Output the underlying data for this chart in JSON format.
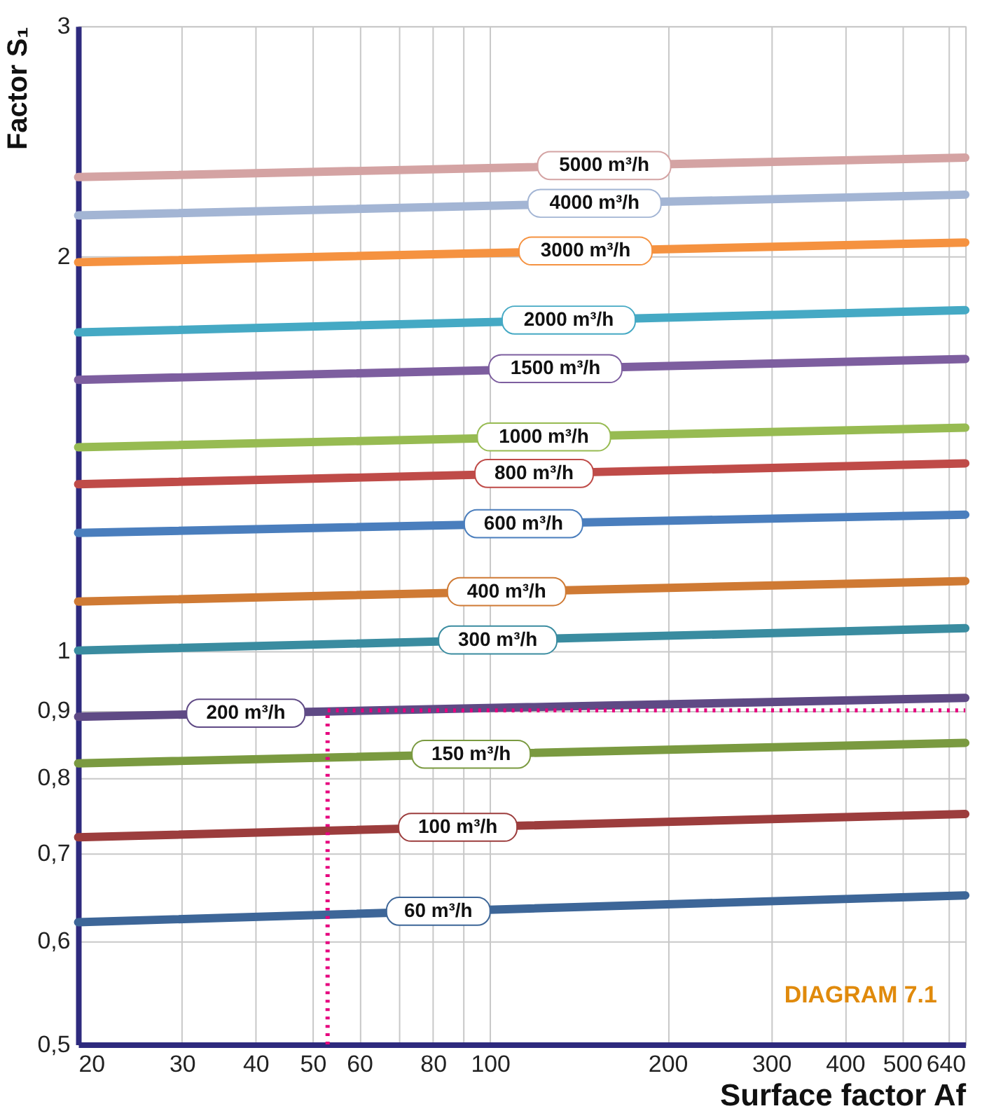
{
  "chart_data": {
    "type": "line",
    "xlabel": "Surface factor Af",
    "ylabel": "Factor S₁",
    "log": "xy",
    "grid": true,
    "legend": false,
    "line_style": "solid",
    "marker": "none",
    "xlim": [
      20,
      640
    ],
    "ylim": [
      0.5,
      3
    ],
    "xticks": [
      20,
      30,
      40,
      50,
      60,
      {
        "value": 70,
        "label": null
      },
      80,
      {
        "value": 90,
        "label": null
      },
      100,
      200,
      300,
      400,
      500,
      {
        "value": 600,
        "label": null
      },
      640
    ],
    "yticks": [
      {
        "value": 0.5,
        "label": "0,5"
      },
      {
        "value": 0.6,
        "label": "0,6"
      },
      {
        "value": 0.7,
        "label": "0,7"
      },
      {
        "value": 0.8,
        "label": "0,8"
      },
      {
        "value": 0.9,
        "label": "0,9"
      },
      1,
      2,
      3
    ],
    "x": [
      20,
      640
    ],
    "series": [
      {
        "name": "5000 m³/h",
        "color": "#d4a3a3",
        "values": [
          2.3,
          2.38
        ]
      },
      {
        "name": "4000 m³/h",
        "color": "#a3b5d4",
        "values": [
          2.15,
          2.23
        ]
      },
      {
        "name": "3000 m³/h",
        "color": "#f59240",
        "values": [
          1.98,
          2.05
        ]
      },
      {
        "name": "2000 m³/h",
        "color": "#45a9c4",
        "values": [
          1.75,
          1.82
        ]
      },
      {
        "name": "1500 m³/h",
        "color": "#7d5e9f",
        "values": [
          1.61,
          1.67
        ]
      },
      {
        "name": "1000 m³/h",
        "color": "#97bb52",
        "values": [
          1.43,
          1.48
        ]
      },
      {
        "name": "800 m³/h",
        "color": "#bf4b48",
        "values": [
          1.34,
          1.39
        ]
      },
      {
        "name": "600 m³/h",
        "color": "#4a7ebd",
        "values": [
          1.23,
          1.27
        ]
      },
      {
        "name": "400 m³/h",
        "color": "#cf7a34",
        "values": [
          1.09,
          1.13
        ]
      },
      {
        "name": "300 m³/h",
        "color": "#3a8ca0",
        "values": [
          1.0,
          1.04
        ]
      },
      {
        "name": "200 m³/h",
        "color": "#5f4a85",
        "values": [
          0.89,
          0.92
        ]
      },
      {
        "name": "150 m³/h",
        "color": "#7a9a40",
        "values": [
          0.82,
          0.85
        ]
      },
      {
        "name": "100 m³/h",
        "color": "#9c3d3d",
        "values": [
          0.72,
          0.75
        ]
      },
      {
        "name": "60 m³/h",
        "color": "#3d6698",
        "values": [
          0.62,
          0.65
        ]
      }
    ],
    "ref_lines": [
      {
        "axis": "x",
        "value": 53,
        "color": "#e6007e",
        "line_style": "dotted"
      },
      {
        "axis": "y",
        "value": 0.9,
        "color": "#e6007e",
        "line_style": "dotted"
      }
    ],
    "annotations": [
      "DIAGRAM 7.1"
    ]
  }
}
